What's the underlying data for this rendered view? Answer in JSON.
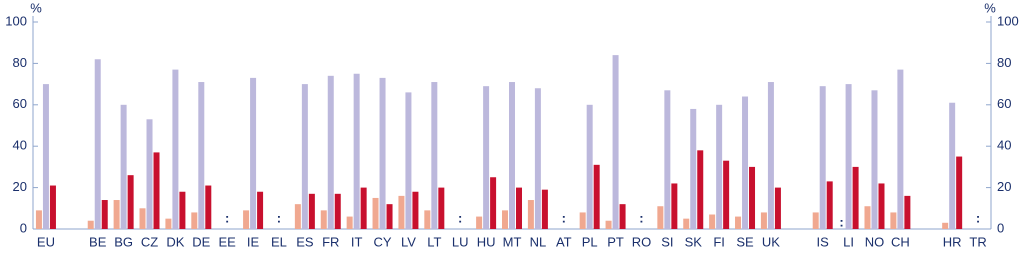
{
  "chart_data": {
    "type": "bar",
    "y_label": "%",
    "y2_label": "%",
    "categories": [
      "EU",
      null,
      "BE",
      "BG",
      "CZ",
      "DK",
      "DE",
      "EE",
      "IE",
      "EL",
      "ES",
      "FR",
      "IT",
      "CY",
      "LV",
      "LT",
      "LU",
      "HU",
      "MT",
      "NL",
      "AT",
      "PL",
      "PT",
      "RO",
      "SI",
      "SK",
      "FI",
      "SE",
      "UK",
      null,
      "IS",
      "LI",
      "NO",
      "CH",
      null,
      "HR",
      "TR"
    ],
    "series": [
      {
        "color": "#f0a890",
        "values": [
          9,
          null,
          4,
          14,
          10,
          5,
          8,
          null,
          9,
          null,
          12,
          9,
          6,
          15,
          16,
          9,
          null,
          6,
          9,
          14,
          null,
          8,
          4,
          null,
          11,
          5,
          7,
          6,
          8,
          null,
          8,
          null,
          11,
          8,
          null,
          3,
          null
        ]
      },
      {
        "color": "#bcb8dc",
        "values": [
          70,
          null,
          82,
          60,
          53,
          77,
          71,
          null,
          73,
          null,
          70,
          74,
          75,
          73,
          66,
          71,
          null,
          69,
          71,
          68,
          null,
          60,
          84,
          null,
          67,
          58,
          60,
          64,
          71,
          null,
          69,
          70,
          67,
          77,
          null,
          61,
          null
        ]
      },
      {
        "color": "#c8102e",
        "values": [
          21,
          null,
          14,
          26,
          37,
          18,
          21,
          null,
          18,
          null,
          17,
          17,
          20,
          12,
          18,
          20,
          null,
          25,
          20,
          19,
          null,
          31,
          12,
          null,
          22,
          38,
          33,
          30,
          20,
          null,
          23,
          30,
          22,
          16,
          null,
          35,
          null
        ]
      }
    ],
    "missing_label": ":",
    "ylim": [
      0,
      100
    ],
    "yticks": [
      0,
      20,
      40,
      60,
      80,
      100
    ],
    "y2lim": [
      0,
      100
    ],
    "y2ticks": [
      0,
      20,
      40,
      60,
      80,
      100
    ]
  }
}
